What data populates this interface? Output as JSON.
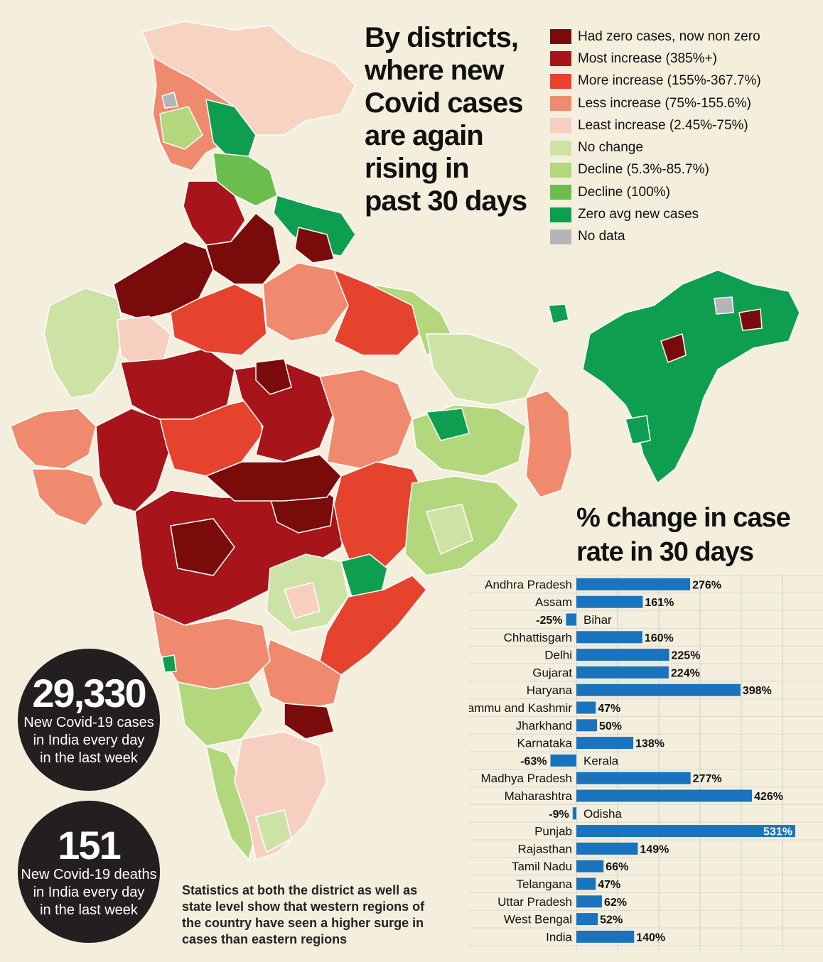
{
  "title": {
    "lines": [
      "By districts,",
      "where new",
      "Covid cases",
      "are again",
      "rising in",
      "past 30 days"
    ]
  },
  "legend": [
    {
      "label": "Had zero cases, now non zero",
      "color": "#7a0b0b"
    },
    {
      "label": "Most increase (385%+)",
      "color": "#a7151a"
    },
    {
      "label": "More increase (155%-367.7%)",
      "color": "#e5432e"
    },
    {
      "label": "Less increase (75%-155.6%)",
      "color": "#ef8a6e"
    },
    {
      "label": "Least increase (2.45%-75%)",
      "color": "#f7cfc0"
    },
    {
      "label": "No change",
      "color": "#cde3a6"
    },
    {
      "label": "Decline (5.3%-85.7%)",
      "color": "#b2d77d"
    },
    {
      "label": "Decline (100%)",
      "color": "#6bbd4d"
    },
    {
      "label": "Zero avg new cases",
      "color": "#0e9e4f"
    },
    {
      "label": "No data",
      "color": "#b4b5ba"
    }
  ],
  "stats": {
    "cases": {
      "number": "29,330",
      "lines": [
        "New Covid-19 cases",
        "in India every day",
        "in the last week"
      ]
    },
    "deaths": {
      "number": "151",
      "lines": [
        "New Covid-19 deaths",
        "in India every day",
        "in the last week"
      ]
    }
  },
  "note": "Statistics at both the district as well as state level show that western regions of the country have seen a higher surge in cases than eastern regions",
  "chart_title": "% change in case rate in 30 days",
  "chart_data": {
    "type": "bar",
    "orientation": "horizontal",
    "title": "% change in case rate in 30 days",
    "categories": [
      "Andhra Pradesh",
      "Assam",
      "Bihar",
      "Chhattisgarh",
      "Delhi",
      "Gujarat",
      "Haryana",
      "Jammu and Kashmir",
      "Jharkhand",
      "Karnataka",
      "Kerala",
      "Madhya Pradesh",
      "Maharashtra",
      "Odisha",
      "Punjab",
      "Rajasthan",
      "Tamil Nadu",
      "Telangana",
      "Uttar Pradesh",
      "West Bengal",
      "India"
    ],
    "values": [
      276,
      161,
      -25,
      160,
      225,
      224,
      398,
      47,
      50,
      138,
      -63,
      277,
      426,
      -9,
      531,
      149,
      66,
      47,
      62,
      52,
      140
    ],
    "value_labels": [
      "276%",
      "161%",
      "-25%",
      "160%",
      "225%",
      "224%",
      "398%",
      "47%",
      "50%",
      "138%",
      "-63%",
      "277%",
      "426%",
      "-9%",
      "531%",
      "149%",
      "66%",
      "47%",
      "62%",
      "52%",
      "140%"
    ],
    "xlim": [
      -100,
      540
    ],
    "grid": true,
    "bar_color": "#1a73bd"
  }
}
